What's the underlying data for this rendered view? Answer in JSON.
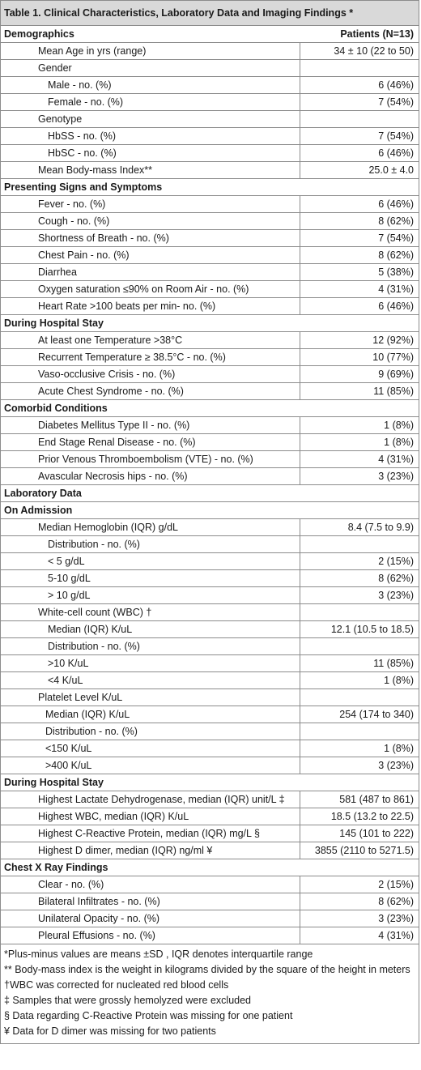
{
  "title": "Table 1. Clinical Characteristics, Laboratory Data and Imaging Findings *",
  "col_header": "Patients (N=13)",
  "rows": [
    {
      "label": "Demographics",
      "value": "",
      "kind": "section"
    },
    {
      "label": "Mean Age in yrs (range)",
      "value": "34 ± 10 (22  to 50)",
      "kind": "i1"
    },
    {
      "label": "Gender",
      "value": "",
      "kind": "i1"
    },
    {
      "label": "Male - no. (%)",
      "value": "6 (46%)",
      "kind": "i2"
    },
    {
      "label": "Female - no. (%)",
      "value": "7 (54%)",
      "kind": "i2"
    },
    {
      "label": "Genotype",
      "value": "",
      "kind": "i1"
    },
    {
      "label": "HbSS - no. (%)",
      "value": "7 (54%)",
      "kind": "i2"
    },
    {
      "label": "HbSC - no. (%)",
      "value": "6 (46%)",
      "kind": "i2"
    },
    {
      "label": "Mean Body-mass Index**",
      "value": "25.0 ± 4.0",
      "kind": "i1"
    },
    {
      "label": "Presenting Signs and Symptoms",
      "value": "",
      "kind": "section"
    },
    {
      "label": "Fever - no. (%)",
      "value": "6 (46%)",
      "kind": "i1"
    },
    {
      "label": "Cough - no. (%)",
      "value": "8 (62%)",
      "kind": "i1"
    },
    {
      "label": "Shortness of Breath - no. (%)",
      "value": "7 (54%)",
      "kind": "i1"
    },
    {
      "label": "Chest Pain - no. (%)",
      "value": "8 (62%)",
      "kind": "i1"
    },
    {
      "label": "Diarrhea",
      "value": "5 (38%)",
      "kind": "i1"
    },
    {
      "label": "Oxygen saturation ≤90% on Room Air - no. (%)",
      "value": "4 (31%)",
      "kind": "i1"
    },
    {
      "label": "Heart Rate >100 beats per min- no. (%)",
      "value": "6 (46%)",
      "kind": "i1"
    },
    {
      "label": "During Hospital Stay",
      "value": "",
      "kind": "section"
    },
    {
      "label": "At least one Temperature >38°C",
      "value": "12 (92%)",
      "kind": "i1"
    },
    {
      "label": "Recurrent Temperature ≥ 38.5°C  - no. (%)",
      "value": "10 (77%)",
      "kind": "i1"
    },
    {
      "label": "Vaso-occlusive Crisis - no. (%)",
      "value": "9 (69%)",
      "kind": "i1"
    },
    {
      "label": "Acute Chest Syndrome - no. (%)",
      "value": "11 (85%)",
      "kind": "i1"
    },
    {
      "label": "Comorbid Conditions",
      "value": "",
      "kind": "section"
    },
    {
      "label": "Diabetes Mellitus Type II - no. (%)",
      "value": "1 (8%)",
      "kind": "i1"
    },
    {
      "label": "End Stage Renal Disease - no. (%)",
      "value": "1 (8%)",
      "kind": "i1"
    },
    {
      "label": "Prior Venous Thromboembolism (VTE) - no. (%)",
      "value": "4 (31%)",
      "kind": "i1"
    },
    {
      "label": "Avascular Necrosis hips - no. (%)",
      "value": "3 (23%)",
      "kind": "i1"
    },
    {
      "label": "Laboratory Data",
      "value": "",
      "kind": "section"
    },
    {
      "label": "On Admission",
      "value": "",
      "kind": "section"
    },
    {
      "label": "Median Hemoglobin (IQR) g/dL",
      "value": "8.4 (7.5 to 9.9)",
      "kind": "i1"
    },
    {
      "label": "Distribution - no. (%)",
      "value": "",
      "kind": "i2"
    },
    {
      "label": "< 5 g/dL",
      "value": "2 (15%)",
      "kind": "i2"
    },
    {
      "label": "5-10 g/dL",
      "value": "8 (62%)",
      "kind": "i2"
    },
    {
      "label": "> 10 g/dL",
      "value": "3 (23%)",
      "kind": "i2"
    },
    {
      "label": "White-cell count (WBC) †",
      "value": "",
      "kind": "i1"
    },
    {
      "label": "Median (IQR) K/uL",
      "value": "12.1 (10.5 to 18.5)",
      "kind": "i2"
    },
    {
      "label": "Distribution - no. (%)",
      "value": "",
      "kind": "i2"
    },
    {
      "label": ">10 K/uL",
      "value": "11 (85%)",
      "kind": "i2u"
    },
    {
      "label": "<4 K/uL",
      "value": "1 (8%)",
      "kind": "i2u"
    },
    {
      "label": "Platelet Level K/uL",
      "value": "",
      "kind": "i1"
    },
    {
      "label": "Median (IQR) K/uL",
      "value": "254 (174 to 340)",
      "kind": "i3"
    },
    {
      "label": "Distribution - no. (%)",
      "value": "",
      "kind": "i3"
    },
    {
      "label": "<150 K/uL",
      "value": "1 (8%)",
      "kind": "i3u"
    },
    {
      "label": ">400 K/uL",
      "value": "3 (23%)",
      "kind": "i3u"
    },
    {
      "label": "During Hospital Stay",
      "value": "",
      "kind": "section"
    },
    {
      "label": "Highest Lactate Dehydrogenase, median  (IQR) unit/L ‡",
      "value": "581 (487 to 861)",
      "kind": "i1"
    },
    {
      "label": "Highest WBC, median (IQR)  K/uL",
      "value": "18.5 (13.2 to 22.5)",
      "kind": "i1"
    },
    {
      "label": "Highest C-Reactive Protein, median  (IQR) mg/L §",
      "value": "145 (101 to 222)",
      "kind": "i1"
    },
    {
      "label": "Highest D dimer, median  (IQR) ng/ml ¥",
      "value": "3855 (2110 to 5271.5)",
      "kind": "i1"
    },
    {
      "label": "Chest X Ray Findings",
      "value": "",
      "kind": "section"
    },
    {
      "label": "Clear - no. (%)",
      "value": "2 (15%)",
      "kind": "i1"
    },
    {
      "label": "Bilateral Infiltrates - no. (%)",
      "value": "8 (62%)",
      "kind": "i1"
    },
    {
      "label": "Unilateral Opacity - no. (%)",
      "value": "3 (23%)",
      "kind": "i1"
    },
    {
      "label": "Pleural Effusions - no. (%)",
      "value": "4 (31%)",
      "kind": "i1"
    }
  ],
  "footnotes": [
    "*Plus-minus values are means ±SD , IQR denotes interquartile range",
    "** Body-mass index is the weight in kilograms divided by the square of the height in meters",
    "†WBC was corrected for nucleated red blood cells",
    "‡  Samples that were grossly hemolyzed were excluded",
    "§  Data regarding C-Reactive Protein was missing for one patient",
    "¥ Data for D dimer was missing for two patients"
  ]
}
